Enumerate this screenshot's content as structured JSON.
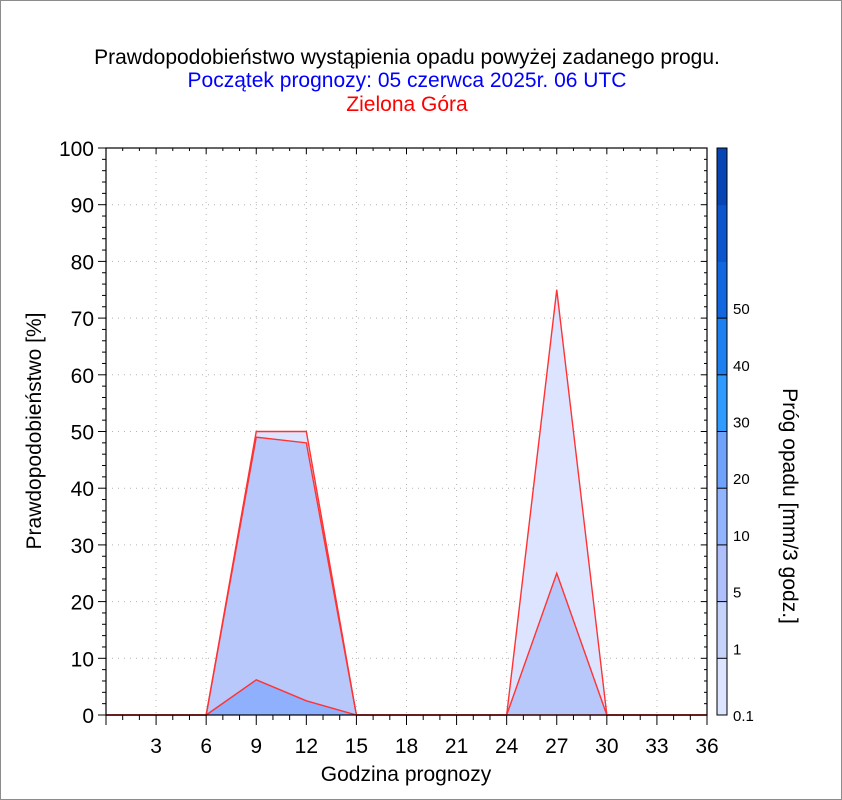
{
  "chart_data": {
    "type": "area",
    "title": "Prawdopodobieństwo wystąpienia opadu powyżej zadanego progu.",
    "subtitle": "Początek prognozy: 05 czerwca 2025r. 06 UTC",
    "location": "Zielona Góra",
    "xlabel": "Godzina prognozy",
    "ylabel": "Prawdopodobieństwo [%]",
    "colorbar_label": "Próg opadu [mm/3 godz.]",
    "xlim": [
      0,
      36
    ],
    "ylim": [
      0,
      100
    ],
    "xticks": [
      "3",
      "6",
      "9",
      "12",
      "15",
      "18",
      "21",
      "24",
      "27",
      "30",
      "33",
      "36"
    ],
    "yticks": [
      "0",
      "10",
      "20",
      "30",
      "40",
      "50",
      "60",
      "70",
      "80",
      "90",
      "100"
    ],
    "colorbar_ticks": [
      "0.1",
      "1",
      "5",
      "10",
      "20",
      "30",
      "40",
      "50"
    ],
    "colorbar_colors": [
      "#dde4ff",
      "#c5d3fb",
      "#aebffb",
      "#92b3fd",
      "#6fa2fb",
      "#2f9bff",
      "#1e7ff0",
      "#1067e0",
      "#0b56cc",
      "#0744b4"
    ],
    "grid": true,
    "x": [
      0,
      3,
      6,
      9,
      12,
      15,
      18,
      21,
      24,
      27,
      30,
      33,
      36
    ],
    "series": [
      {
        "threshold": "0.1",
        "color": "#dde4ff",
        "values": [
          0,
          0,
          0,
          50,
          50,
          0,
          0,
          0,
          0,
          75,
          0,
          0,
          0
        ]
      },
      {
        "threshold": "1",
        "color": "#b8c8fa",
        "values": [
          0,
          0,
          0,
          49,
          48,
          0,
          0,
          0,
          0,
          25,
          0,
          0,
          0
        ]
      },
      {
        "threshold": "5",
        "color": "#8eb0fd",
        "values": [
          0,
          0,
          0,
          6.2,
          2.5,
          0,
          0,
          0,
          0,
          0,
          0,
          0,
          0
        ]
      }
    ]
  }
}
